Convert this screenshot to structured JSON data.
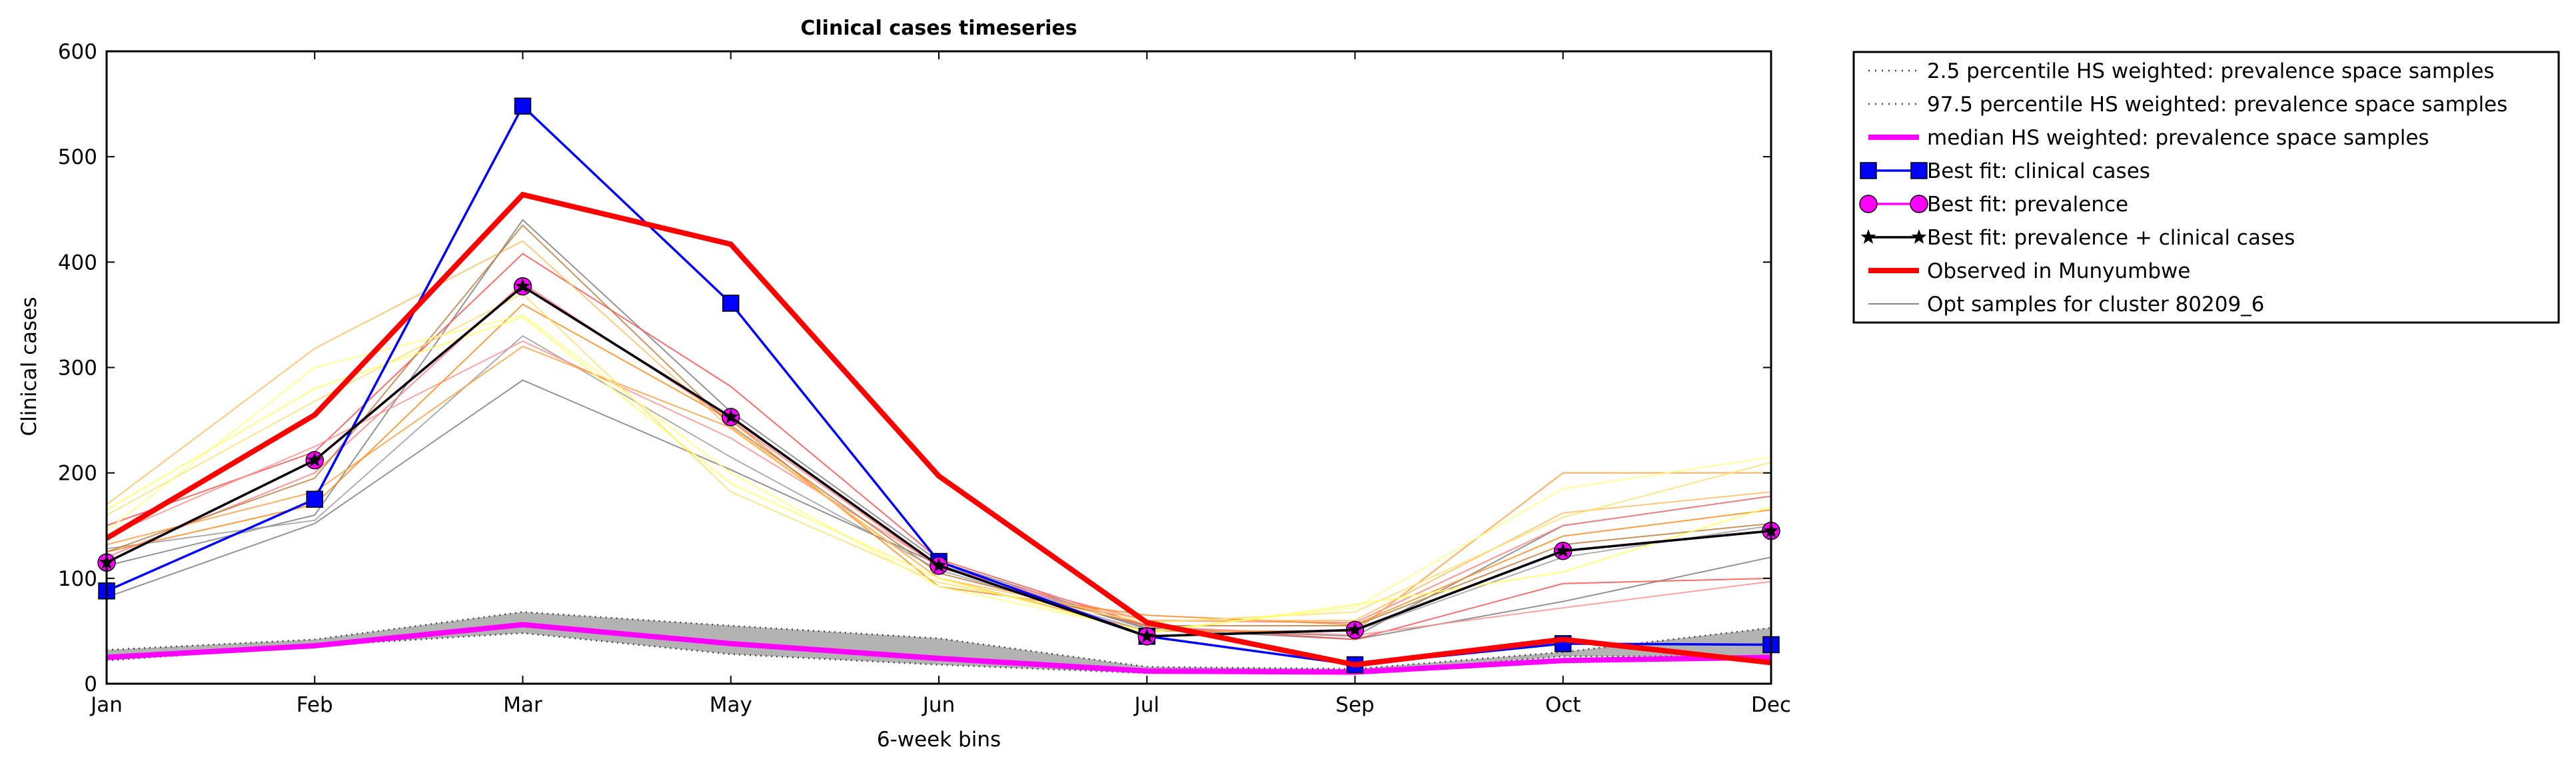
{
  "chart_data": {
    "type": "line",
    "title": "Clinical cases timeseries",
    "xlabel": "6-week bins",
    "ylabel": "Clinical cases",
    "x": [
      "Jan",
      "Feb",
      "Mar",
      "May",
      "Jun",
      "Jul",
      "Sep",
      "Oct",
      "Dec"
    ],
    "ylim": [
      0,
      600
    ],
    "yticks": [
      0,
      100,
      200,
      300,
      400,
      500,
      600
    ],
    "grid": false,
    "legend_position": "outside right, top",
    "band": {
      "lower_name": "2.5 percentile HS weighted: prevalence space samples",
      "upper_name": "97.5 percentile HS weighted: prevalence space samples",
      "lower": [
        22,
        36,
        48,
        28,
        18,
        10,
        10,
        26,
        26
      ],
      "upper": [
        32,
        42,
        68,
        55,
        43,
        16,
        14,
        30,
        53
      ],
      "fill": "#b3b3b3"
    },
    "series": [
      {
        "name": "median HS weighted: prevalence space samples",
        "color": "#ff00ff",
        "values": [
          25,
          36,
          56,
          38,
          24,
          12,
          11,
          22,
          25
        ],
        "style": "thick"
      },
      {
        "name": "Best fit: clinical cases",
        "color": "#0000ff",
        "values": [
          88,
          175,
          548,
          361,
          116,
          45,
          18,
          38,
          37
        ],
        "marker": "square"
      },
      {
        "name": "Best fit: prevalence",
        "color": "#ff00ff",
        "values": [
          115,
          212,
          377,
          253,
          112,
          45,
          51,
          126,
          145
        ],
        "marker": "circle"
      },
      {
        "name": "Best fit: prevalence + clinical cases",
        "color": "#000000",
        "values": [
          115,
          212,
          377,
          253,
          112,
          45,
          51,
          126,
          145
        ],
        "marker": "star"
      },
      {
        "name": "Observed in Munyumbwe",
        "color": "#ff0000",
        "values": [
          138,
          255,
          464,
          417,
          197,
          58,
          18,
          42,
          20
        ],
        "style": "thick"
      }
    ],
    "samples": {
      "name": "Opt samples for cluster 80209_6",
      "color": "#888888",
      "lines": [
        {
          "color": "#808080",
          "values": [
            82,
            152,
            288,
            203,
            113,
            52,
            42,
            78,
            120
          ]
        },
        {
          "color": "#808080",
          "values": [
            112,
            160,
            440,
            258,
            116,
            53,
            45,
            150,
            178
          ]
        },
        {
          "color": "#a0a0a0",
          "values": [
            128,
            155,
            330,
            215,
            108,
            50,
            50,
            120,
            150
          ]
        },
        {
          "color": "#ff5050",
          "values": [
            150,
            220,
            408,
            282,
            118,
            55,
            42,
            95,
            100
          ]
        },
        {
          "color": "#ff8080",
          "values": [
            120,
            200,
            380,
            250,
            110,
            60,
            58,
            150,
            178
          ]
        },
        {
          "color": "#ff9090",
          "values": [
            140,
            225,
            325,
            233,
            112,
            54,
            46,
            72,
            97
          ]
        },
        {
          "color": "#ffa040",
          "values": [
            132,
            182,
            320,
            243,
            100,
            50,
            50,
            200,
            200
          ]
        },
        {
          "color": "#ff8c1a",
          "values": [
            125,
            170,
            360,
            250,
            92,
            65,
            56,
            140,
            165
          ]
        },
        {
          "color": "#ffc060",
          "values": [
            170,
            318,
            420,
            242,
            100,
            60,
            60,
            162,
            182
          ]
        },
        {
          "color": "#c08040",
          "values": [
            125,
            195,
            435,
            245,
            105,
            55,
            55,
            132,
            152
          ]
        },
        {
          "color": "#ffe070",
          "values": [
            160,
            268,
            370,
            182,
            96,
            58,
            68,
            158,
            210
          ]
        },
        {
          "color": "#ffff80",
          "values": [
            145,
            300,
            350,
            200,
            92,
            50,
            72,
            185,
            215
          ]
        },
        {
          "color": "#ffff60",
          "values": [
            165,
            280,
            348,
            190,
            100,
            48,
            75,
            106,
            168
          ]
        }
      ]
    }
  }
}
